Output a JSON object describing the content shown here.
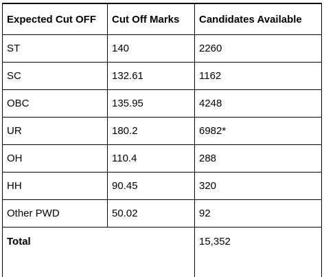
{
  "table": {
    "headers": [
      "Expected Cut OFF",
      "Cut Off Marks",
      "Candidates Available"
    ],
    "rows": [
      [
        "ST",
        "140",
        "2260"
      ],
      [
        "SC",
        "132.61",
        "1162"
      ],
      [
        "OBC",
        "135.95",
        "4248"
      ],
      [
        "UR",
        "180.2",
        "6982*"
      ],
      [
        "OH",
        "110.4",
        "288"
      ],
      [
        "HH",
        "90.45",
        "320"
      ],
      [
        "Other PWD",
        "50.02",
        "92"
      ]
    ],
    "total": {
      "label": "Total",
      "value": "15,352"
    }
  }
}
